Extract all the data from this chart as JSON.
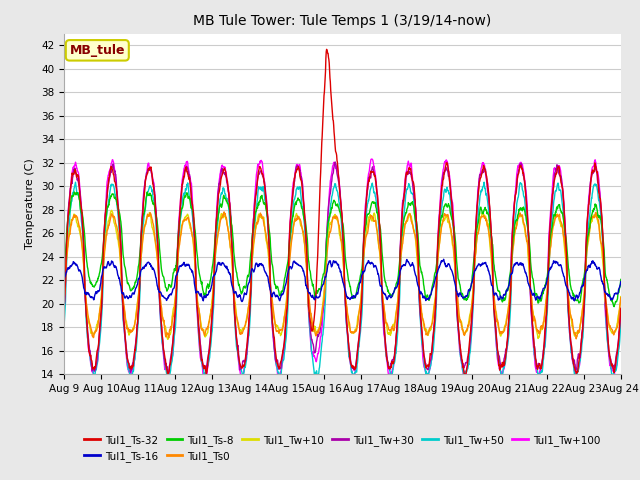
{
  "title": "MB Tule Tower: Tule Temps 1 (3/19/14-now)",
  "ylabel": "Temperature (C)",
  "ylim": [
    14,
    43
  ],
  "yticks": [
    14,
    16,
    18,
    20,
    22,
    24,
    26,
    28,
    30,
    32,
    34,
    36,
    38,
    40,
    42
  ],
  "xlim": [
    0,
    15
  ],
  "xtick_labels": [
    "Aug 9",
    "Aug 10",
    "Aug 11",
    "Aug 12",
    "Aug 13",
    "Aug 14",
    "Aug 15",
    "Aug 16",
    "Aug 17",
    "Aug 18",
    "Aug 19",
    "Aug 20",
    "Aug 21",
    "Aug 22",
    "Aug 23",
    "Aug 24"
  ],
  "bg_color": "#e8e8e8",
  "plot_bg": "#ffffff",
  "grid_color": "#cccccc",
  "box_text": "MB_tule",
  "box_text_color": "#880000",
  "legend_entries": [
    {
      "label": "Tul1_Ts-32",
      "color": "#dd0000"
    },
    {
      "label": "Tul1_Ts-16",
      "color": "#0000cc"
    },
    {
      "label": "Tul1_Ts-8",
      "color": "#00cc00"
    },
    {
      "label": "Tul1_Ts0",
      "color": "#ff8800"
    },
    {
      "label": "Tul1_Tw+10",
      "color": "#dddd00"
    },
    {
      "label": "Tul1_Tw+30",
      "color": "#aa00aa"
    },
    {
      "label": "Tul1_Tw+50",
      "color": "#00cccc"
    },
    {
      "label": "Tul1_Tw+100",
      "color": "#ff00ff"
    }
  ],
  "title_fontsize": 10,
  "axis_fontsize": 8,
  "tick_fontsize": 7.5,
  "legend_fontsize": 7.5,
  "lw": 1.0,
  "n_points": 1500,
  "seed": 7
}
